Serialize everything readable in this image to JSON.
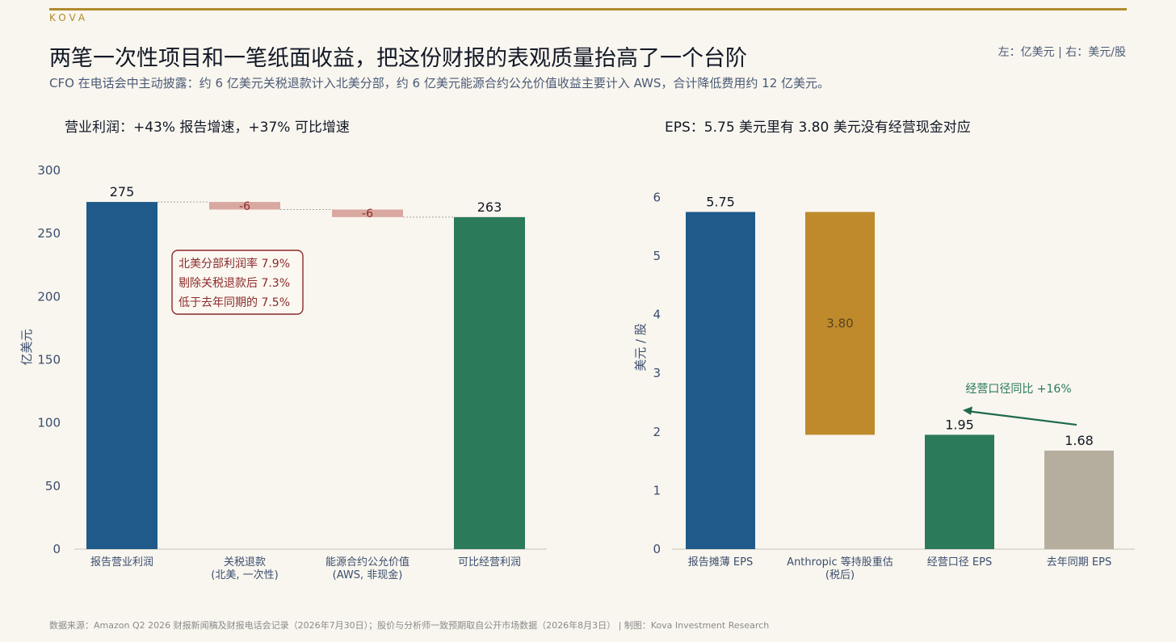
{
  "brand": "KOVA",
  "title": "两笔一次性项目和一笔纸面收益，把这份财报的表观质量抬高了一个台阶",
  "unit_note": "左：亿美元 | 右：美元/股",
  "subtitle": "CFO 在电话会中主动披露：约 6 亿美元关税退款计入北美分部，约 6 亿美元能源合约公允价值收益主要计入 AWS，合计降低费用约 12 亿美元。",
  "footer": "数据来源：Amazon Q2 2026 财报新闻稿及财报电话会记录（2026年7月30日）；股价与分析师一致预期取自公开市场数据（2026年8月3日） | 制图：Kova Investment Research",
  "colors": {
    "blue": "#1f5a8a",
    "green": "#2b7a5a",
    "pink": "#d9a8a0",
    "gold": "#bf8a2b",
    "gray": "#b5ae9f",
    "red_text": "#8b2c2a"
  },
  "chart_data": [
    {
      "type": "bar",
      "subtype": "waterfall",
      "title": "营业利润：+43% 报告增速，+37% 可比增速",
      "ylabel": "亿美元",
      "ylim": [
        0,
        300
      ],
      "yticks": [
        0,
        50,
        100,
        150,
        200,
        250,
        300
      ],
      "categories": [
        [
          "报告营业利润"
        ],
        [
          "关税退款",
          "(北美, 一次性)"
        ],
        [
          "能源合约公允价值",
          "(AWS, 非现金)"
        ],
        [
          "可比经营利润"
        ]
      ],
      "bars": [
        {
          "kind": "total",
          "start": 0,
          "end": 275,
          "label": "275",
          "color": "#1f5a8a"
        },
        {
          "kind": "delta",
          "start": 275,
          "end": 269,
          "label": "-6",
          "color": "#d9a8a0"
        },
        {
          "kind": "delta",
          "start": 269,
          "end": 263,
          "label": "-6",
          "color": "#d9a8a0"
        },
        {
          "kind": "total",
          "start": 0,
          "end": 263,
          "label": "263",
          "color": "#2b7a5a"
        }
      ],
      "annotation": [
        "北美分部利润率 7.9%",
        "剔除关税退款后 7.3%",
        "低于去年同期的 7.5%"
      ]
    },
    {
      "type": "bar",
      "subtype": "waterfall",
      "title": "EPS：5.75 美元里有 3.80 美元没有经营现金对应",
      "ylabel": "美元 / 股",
      "ylim": [
        0,
        6.5
      ],
      "yticks": [
        0,
        1,
        2,
        3,
        4,
        5,
        6
      ],
      "categories": [
        [
          "报告摊薄 EPS"
        ],
        [
          "Anthropic 等持股重估",
          "(税后)"
        ],
        [
          "经营口径 EPS"
        ],
        [
          "去年同期 EPS"
        ]
      ],
      "bars": [
        {
          "kind": "total",
          "start": 0,
          "end": 5.75,
          "label": "5.75",
          "label_pos": "top",
          "color": "#1f5a8a"
        },
        {
          "kind": "delta",
          "start": 5.75,
          "end": 1.95,
          "label": "3.80",
          "label_pos": "center",
          "color": "#bf8a2b"
        },
        {
          "kind": "total",
          "start": 0,
          "end": 1.95,
          "label": "1.95",
          "label_pos": "top",
          "color": "#2b7a5a"
        },
        {
          "kind": "total",
          "start": 0,
          "end": 1.68,
          "label": "1.68",
          "label_pos": "top",
          "color": "#b5ae9f"
        }
      ],
      "annotation": "经营口径同比 +16%"
    }
  ]
}
